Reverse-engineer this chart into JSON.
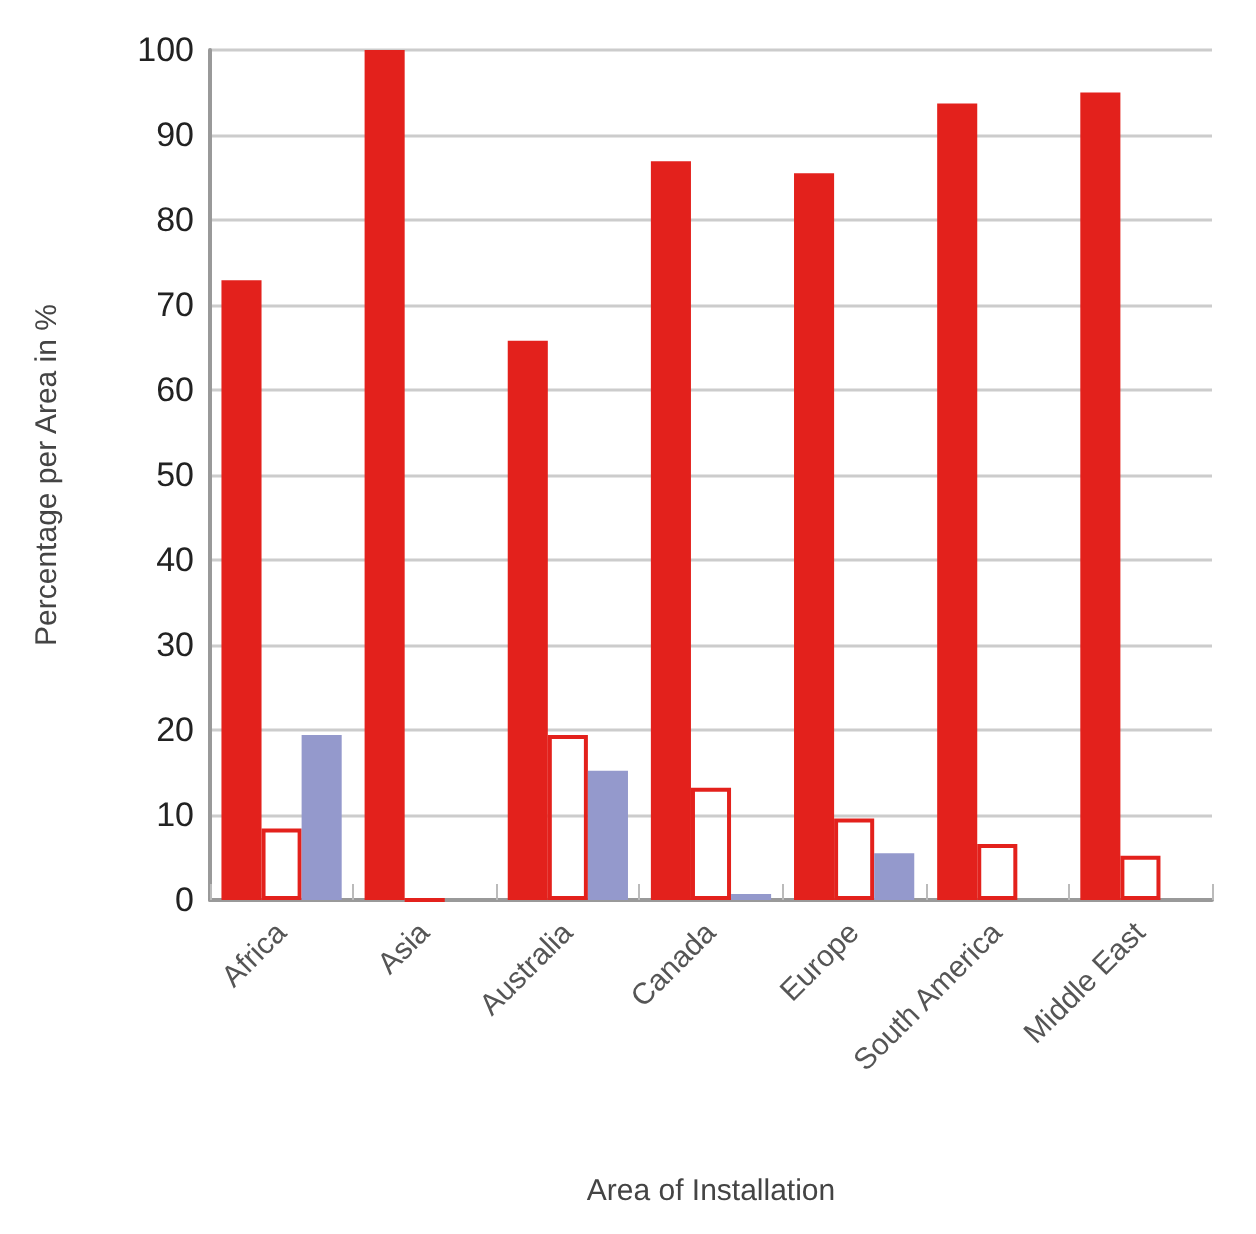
{
  "chart_data": {
    "type": "bar",
    "xlabel": "Area of Installation",
    "ylabel": "Percentage per Area in %",
    "categories": [
      "Africa",
      "Asia",
      "Australia",
      "Canada",
      "Europe",
      "South America",
      "Middle East"
    ],
    "series": [
      {
        "color": "#e3211c",
        "values": [
          72.9,
          100,
          65.8,
          86.9,
          85.5,
          93.7,
          95.0
        ]
      },
      {
        "color": "#e3211c",
        "line_style": "solid",
        "values": [
          8.4,
          0,
          19.4,
          13.2,
          9.6,
          6.6,
          5.2
        ]
      },
      {
        "color": "#9499cc",
        "values": [
          19.4,
          0,
          15.2,
          0.7,
          5.5,
          0,
          0
        ]
      }
    ],
    "ylim": [
      0,
      100
    ],
    "yticks": [
      0,
      10,
      20,
      30,
      40,
      50,
      60,
      70,
      80,
      90,
      100
    ],
    "grid": "y"
  }
}
